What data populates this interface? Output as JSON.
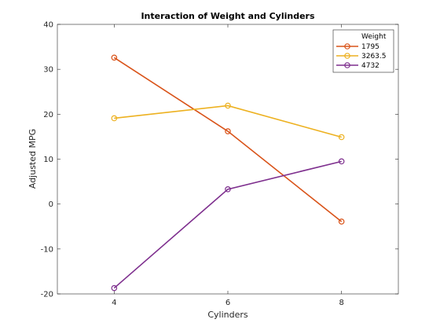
{
  "chart_data": {
    "type": "line",
    "title": "Interaction of Weight and Cylinders",
    "xlabel": "Cylinders",
    "ylabel": "Adjusted MPG",
    "x": [
      4,
      6,
      8
    ],
    "xlim": [
      3,
      9
    ],
    "ylim": [
      -20,
      40
    ],
    "xticks": [
      "4",
      "6",
      "8"
    ],
    "yticks": [
      "-20",
      "-10",
      "0",
      "10",
      "20",
      "30",
      "40"
    ],
    "grid": false,
    "legend": {
      "title": "Weight",
      "position": "top-right"
    },
    "series": [
      {
        "name": "1795",
        "values": [
          32.6,
          16.2,
          -3.9
        ],
        "color": "#D95319",
        "marker": "circle"
      },
      {
        "name": "3263.5",
        "values": [
          19.1,
          21.9,
          14.9
        ],
        "color": "#EDB120",
        "marker": "circle"
      },
      {
        "name": "4732",
        "values": [
          -18.7,
          3.3,
          9.5
        ],
        "color": "#7E2F8E",
        "marker": "circle"
      }
    ]
  }
}
